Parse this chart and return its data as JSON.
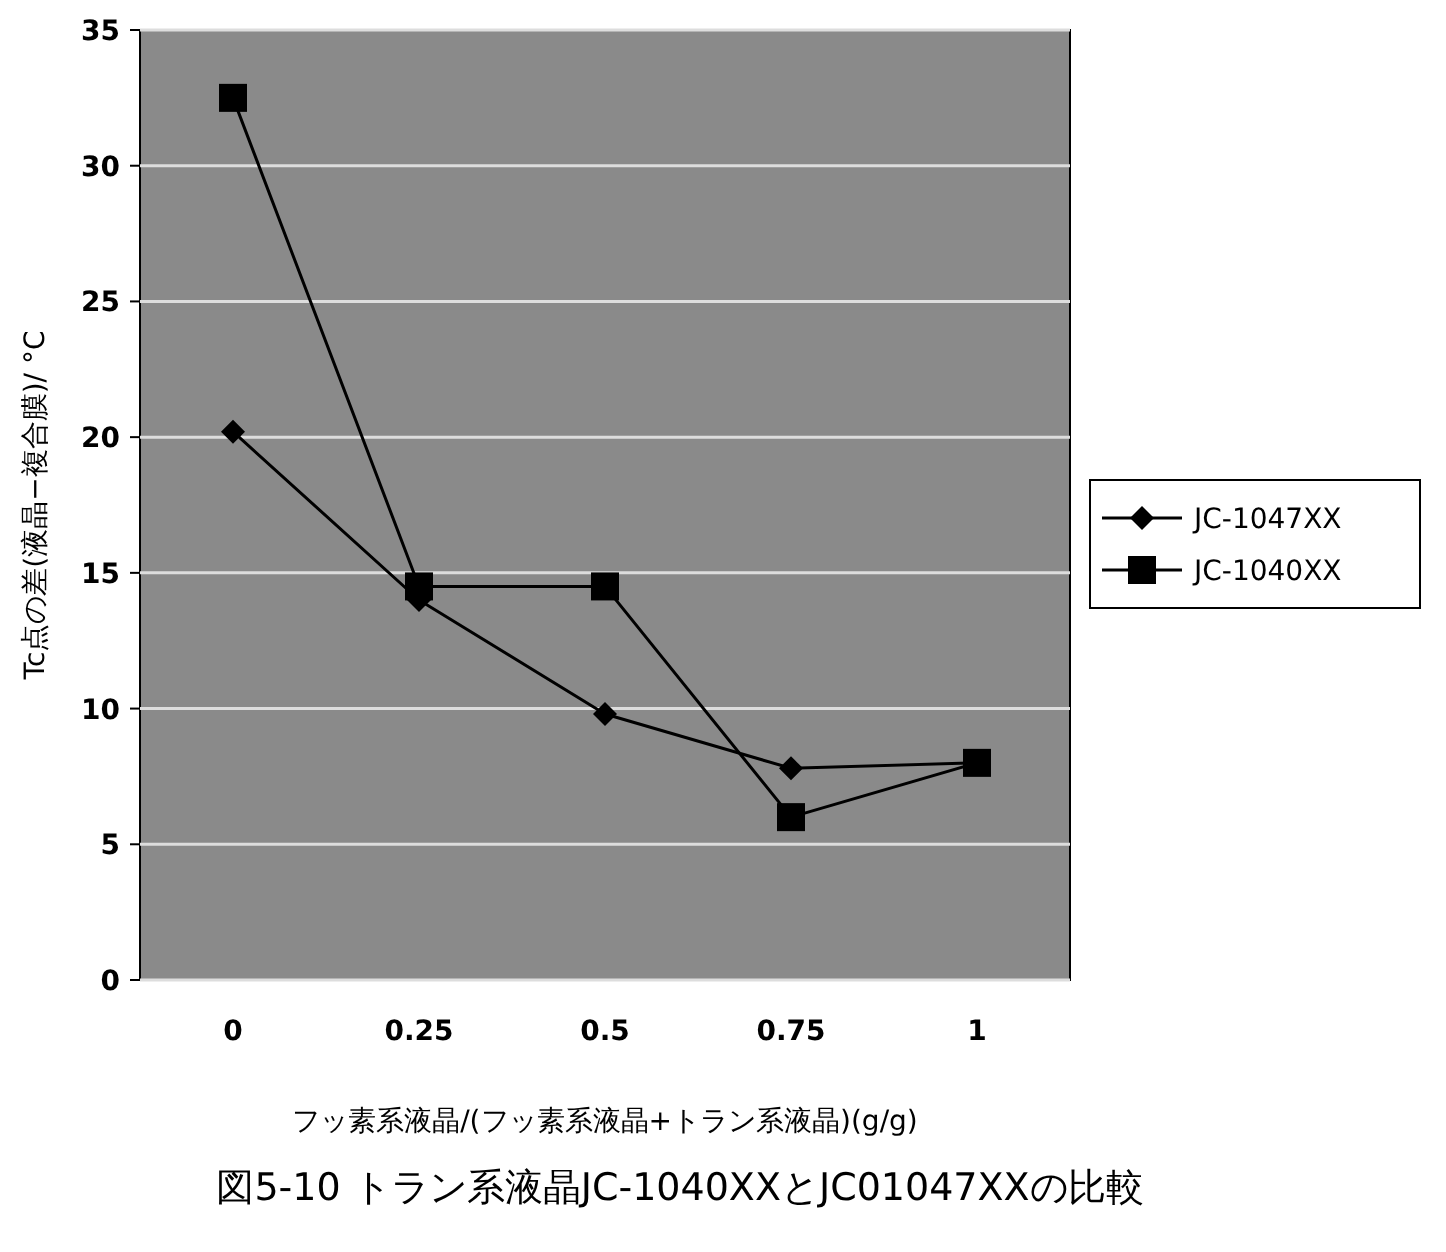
{
  "chart_data": {
    "type": "line",
    "categories": [
      "0",
      "0.25",
      "0.5",
      "0.75",
      "1"
    ],
    "series": [
      {
        "name": "JC-1047XX",
        "color": "#000000",
        "marker": "diamond",
        "values": [
          20.2,
          14,
          9.8,
          7.8,
          8
        ]
      },
      {
        "name": "JC-1040XX",
        "color": "#000000",
        "marker": "square",
        "values": [
          32.5,
          14.5,
          14.5,
          6,
          8
        ]
      }
    ],
    "ylim": [
      0,
      35
    ],
    "yticks": [
      0,
      5,
      10,
      15,
      20,
      25,
      30,
      35
    ],
    "grid": "y",
    "legend": "right",
    "ylabel": "Tc点の差(液晶−複合膜)/ °C",
    "xlabel": "フッ素系液晶/(フッ素系液晶+トラン系液晶)(g/g)",
    "annotations": [
      "図5-10 トラン系液晶JC-1040XXとJC01047XXの比較"
    ]
  }
}
